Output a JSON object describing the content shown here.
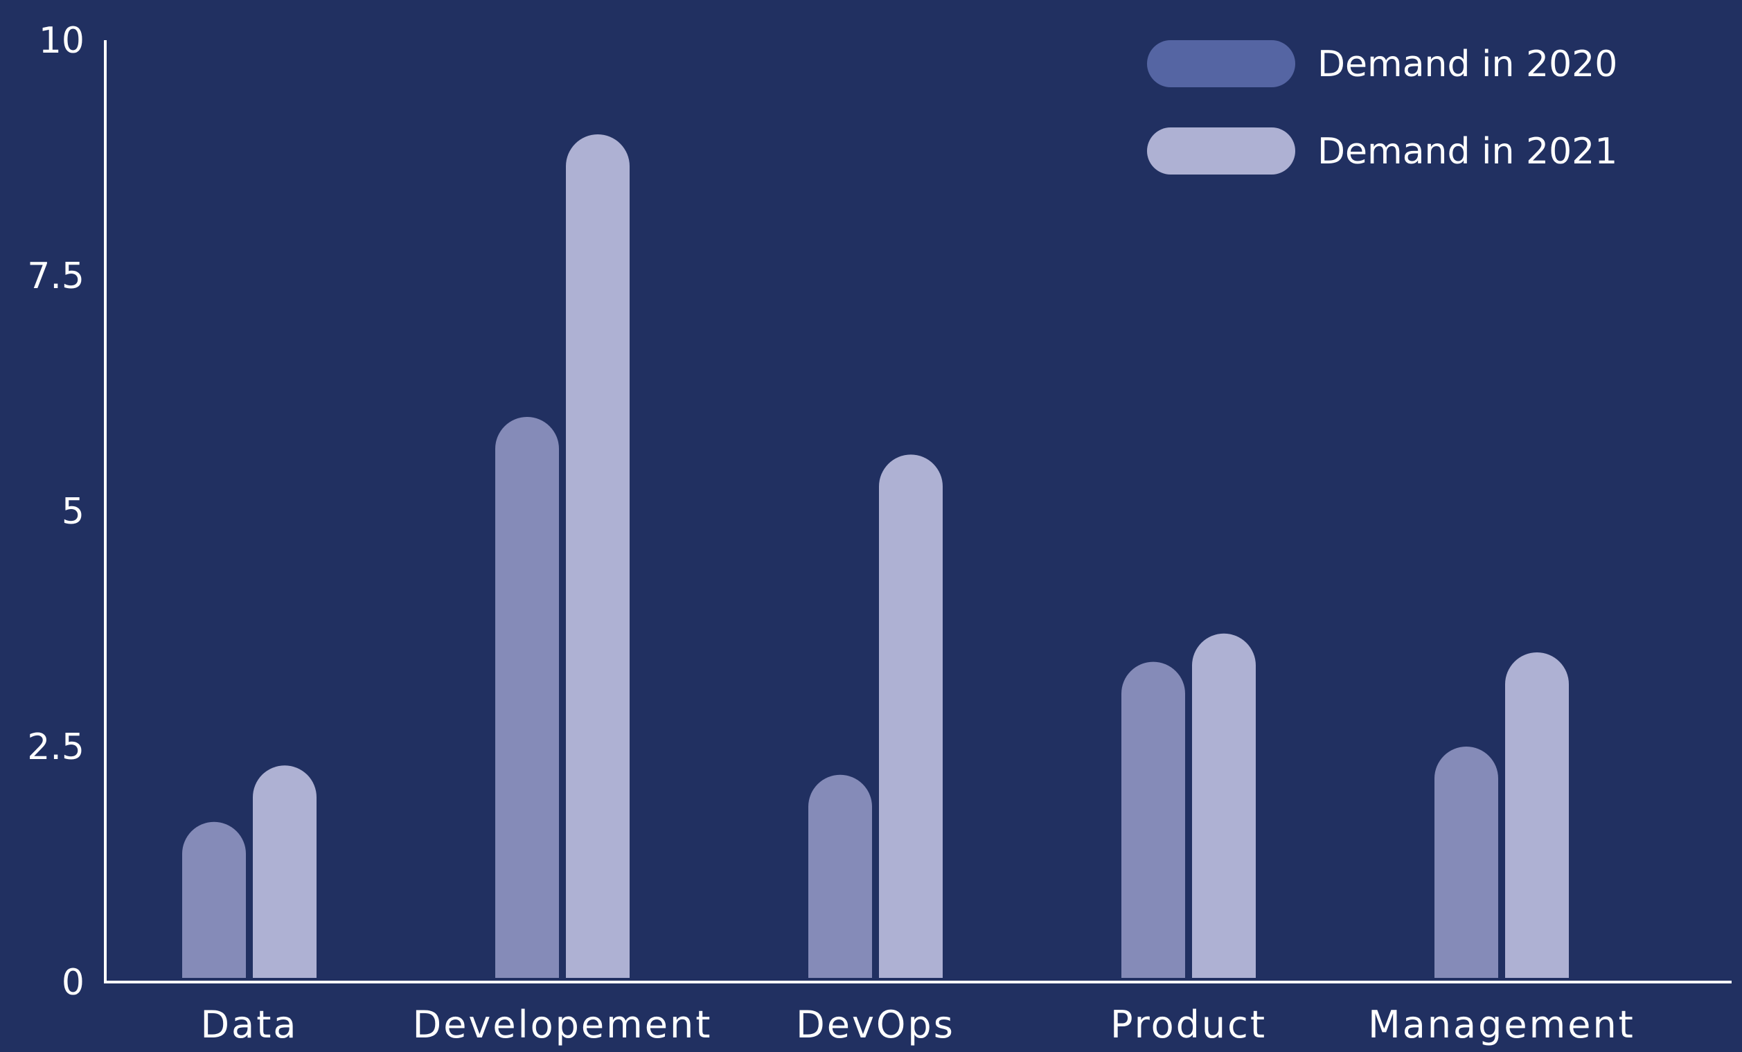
{
  "chart_data": {
    "type": "bar",
    "title": "",
    "xlabel": "",
    "ylabel": "",
    "categories": [
      "Data",
      "Developement",
      "DevOps",
      "Product",
      "Management"
    ],
    "series": [
      {
        "name": "Demand in 2020",
        "values": [
          1.7,
          6.0,
          2.2,
          3.4,
          2.5
        ],
        "color": "#858bb8"
      },
      {
        "name": "Demand in 2021",
        "values": [
          2.3,
          9.0,
          5.6,
          3.7,
          3.5
        ],
        "color": "#aeb1d3"
      }
    ],
    "ylim": [
      0,
      10
    ],
    "yticks": [
      "0",
      "2.5",
      "5",
      "7.5",
      "10"
    ],
    "grid": false,
    "legend": {
      "position": "top-right",
      "swatch_colors": [
        "#5565a3",
        "#aeb1d3"
      ]
    },
    "colors": {
      "background": "#213061",
      "axis": "#ffffff",
      "text": "#ffffff"
    }
  }
}
